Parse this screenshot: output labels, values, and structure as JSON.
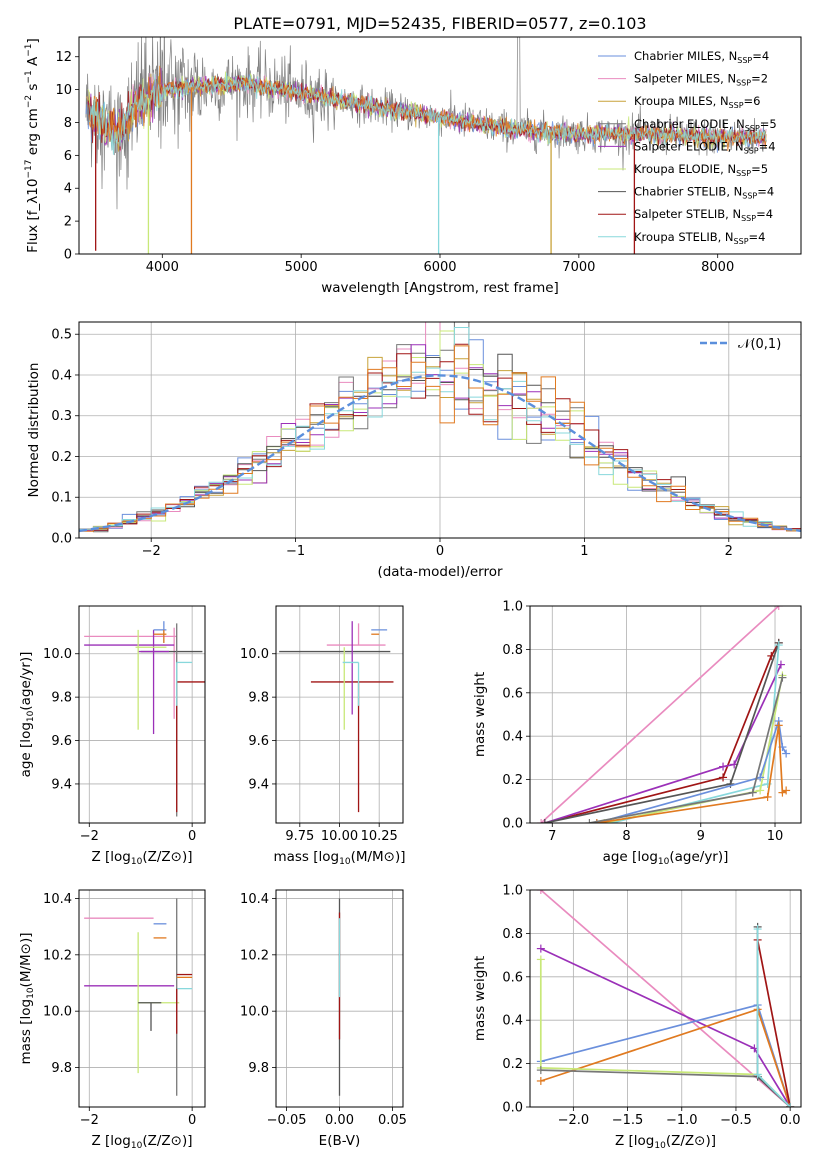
{
  "title": "PLATE=0791, MJD=52435, FIBERID=0577, z=0.103",
  "colors": {
    "chabrier_miles": "#6a8fdc",
    "salpeter_miles": "#e98bbf",
    "kroupa_miles": "#c8a23a",
    "chabrier_elodie": "#777777",
    "salpeter_elodie": "#9b30b8",
    "kroupa_elodie": "#c8e878",
    "chabrier_stelib": "#555555",
    "salpeter_stelib": "#a01515",
    "kroupa_stelib": "#88d8dc",
    "orange": "#e07a20",
    "gauss": "#5b8fdc"
  },
  "legend1": [
    {
      "label": "Chabrier MILES, N",
      "sub": "SSP",
      "tail": "=4",
      "color_key": "chabrier_miles"
    },
    {
      "label": "Salpeter MILES, N",
      "sub": "SSP",
      "tail": "=2",
      "color_key": "salpeter_miles"
    },
    {
      "label": "Kroupa MILES, N",
      "sub": "SSP",
      "tail": "=6",
      "color_key": "kroupa_miles"
    },
    {
      "label": "Chabrier ELODIE, N",
      "sub": "SSP",
      "tail": "=5",
      "color_key": "chabrier_elodie"
    },
    {
      "label": "Salpeter ELODIE, N",
      "sub": "SSP",
      "tail": "=4",
      "color_key": "salpeter_elodie"
    },
    {
      "label": "Kroupa ELODIE, N",
      "sub": "SSP",
      "tail": "=5",
      "color_key": "kroupa_elodie"
    },
    {
      "label": "Chabrier STELIB, N",
      "sub": "SSP",
      "tail": "=4",
      "color_key": "chabrier_stelib"
    },
    {
      "label": "Salpeter STELIB, N",
      "sub": "SSP",
      "tail": "=4",
      "color_key": "salpeter_stelib"
    },
    {
      "label": "Kroupa STELIB, N",
      "sub": "SSP",
      "tail": "=4",
      "color_key": "kroupa_stelib"
    }
  ],
  "chart_data": [
    {
      "id": "spectrum",
      "type": "line",
      "xlabel": "wavelength [Angstrom, rest frame]",
      "ylabel": "Flux [f_λ10^-17 erg cm^-2 s^-1 A^-1]",
      "xlim": [
        3400,
        8600
      ],
      "ylim": [
        0,
        13.2
      ],
      "xticks": [
        4000,
        5000,
        6000,
        7000,
        8000
      ],
      "yticks": [
        0,
        2,
        4,
        6,
        8,
        10,
        12
      ],
      "grid": false,
      "legend_position": "top-right",
      "continuum_points": [
        [
          3450,
          8.8
        ],
        [
          3700,
          7.4
        ],
        [
          3800,
          9.0
        ],
        [
          4000,
          10.0
        ],
        [
          4300,
          10.2
        ],
        [
          4600,
          10.4
        ],
        [
          5000,
          9.8
        ],
        [
          5500,
          9.0
        ],
        [
          6000,
          8.3
        ],
        [
          6500,
          7.6
        ],
        [
          7000,
          7.3
        ],
        [
          7500,
          7.3
        ],
        [
          8000,
          7.1
        ],
        [
          8350,
          7.1
        ]
      ],
      "model_dips": [
        [
          3520,
          0.2
        ],
        [
          3900,
          0.0
        ],
        [
          4210,
          0.0
        ],
        [
          5990,
          0.0
        ],
        [
          6800,
          0.0
        ],
        [
          7400,
          0.0
        ]
      ]
    },
    {
      "id": "residuals",
      "type": "histogram",
      "xlabel": "(data-model)/error",
      "ylabel": "Normed distribution",
      "xlim": [
        -2.5,
        2.5
      ],
      "ylim": [
        0,
        0.53
      ],
      "xticks": [
        -2,
        -1,
        0,
        1,
        2
      ],
      "yticks": [
        0.0,
        0.1,
        0.2,
        0.3,
        0.4,
        0.5
      ],
      "grid": true,
      "legend_position": "top-right",
      "legend": "𝒩(0,1)",
      "gaussian": {
        "mean": 0,
        "sigma": 1
      }
    },
    {
      "id": "age_vs_Z",
      "type": "errorbar",
      "xlabel": "Z [log10(Z/Z⊙)]",
      "ylabel": "age [log10(age/yr)]",
      "xlim": [
        -2.2,
        0.25
      ],
      "ylim": [
        9.22,
        10.22
      ],
      "xticks": [
        -2,
        0
      ],
      "yticks": [
        9.4,
        9.6,
        9.8,
        10.0
      ],
      "grid": true,
      "points": [
        {
          "x": -0.35,
          "y": 10.08,
          "xerr": [
            1.75,
            0.05
          ],
          "yerr": [
            0.38,
            0.04
          ],
          "color_key": "salpeter_miles"
        },
        {
          "x": -0.35,
          "y": 10.04,
          "xerr": [
            1.75,
            0.0
          ],
          "yerr": [
            0.0,
            0.0
          ],
          "color_key": "salpeter_elodie"
        },
        {
          "x": -0.15,
          "y": 10.01,
          "xerr": [
            0.85,
            0.35
          ],
          "yerr": [
            0.0,
            0.0
          ],
          "color_key": "chabrier_stelib"
        },
        {
          "x": -0.75,
          "y": 10.01,
          "xerr": [
            0.3,
            0.3
          ],
          "yerr": [
            0.38,
            0.1
          ],
          "color_key": "salpeter_elodie"
        },
        {
          "x": -0.55,
          "y": 10.11,
          "xerr": [
            0.2,
            0.05
          ],
          "yerr": [
            0.06,
            0.04
          ],
          "color_key": "chabrier_miles"
        },
        {
          "x": -0.55,
          "y": 10.09,
          "xerr": [
            0.2,
            0.05
          ],
          "yerr": [
            0.04,
            0.02
          ],
          "color_key": "orange"
        },
        {
          "x": -1.05,
          "y": 10.03,
          "xerr": [
            0.05,
            0.55
          ],
          "yerr": [
            0.38,
            0.08
          ],
          "color_key": "kroupa_elodie"
        },
        {
          "x": -0.3,
          "y": 10.0,
          "xerr": [
            0.0,
            0.0
          ],
          "yerr": [
            0.75,
            0.14
          ],
          "color_key": "chabrier_elodie"
        },
        {
          "x": -0.3,
          "y": 9.87,
          "xerr": [
            0.0,
            0.55
          ],
          "yerr": [
            0.6,
            0.0
          ],
          "color_key": "salpeter_stelib"
        },
        {
          "x": -0.3,
          "y": 9.96,
          "xerr": [
            0.0,
            0.3
          ],
          "yerr": [
            0.2,
            0.0
          ],
          "color_key": "kroupa_stelib"
        }
      ]
    },
    {
      "id": "age_vs_mass",
      "type": "errorbar",
      "xlabel": "mass [log10(M/M⊙)]",
      "xlim": [
        9.6,
        10.4
      ],
      "ylim": [
        9.22,
        10.22
      ],
      "xticks": [
        9.75,
        10.0,
        10.25
      ],
      "xticklabels": [
        "9.75",
        "10.00",
        "10.25"
      ],
      "yticks": [
        9.4,
        9.6,
        9.8,
        10.0
      ],
      "grid": true,
      "points": [
        {
          "x": 10.12,
          "y": 10.01,
          "xerr": [
            0.5,
            0.2
          ],
          "yerr": [
            0.0,
            0.0
          ],
          "color_key": "chabrier_stelib"
        },
        {
          "x": 10.12,
          "y": 9.87,
          "xerr": [
            0.3,
            0.22
          ],
          "yerr": [
            0.6,
            0.0
          ],
          "color_key": "salpeter_stelib"
        },
        {
          "x": 10.12,
          "y": 10.04,
          "xerr": [
            0.2,
            0.17
          ],
          "yerr": [
            0.0,
            0.1
          ],
          "color_key": "salpeter_miles"
        },
        {
          "x": 10.25,
          "y": 10.11,
          "xerr": [
            0.05,
            0.05
          ],
          "yerr": [
            0.0,
            0.0
          ],
          "color_key": "chabrier_miles"
        },
        {
          "x": 10.25,
          "y": 10.09,
          "xerr": [
            0.05,
            0.0
          ],
          "yerr": [
            0.0,
            0.0
          ],
          "color_key": "orange"
        },
        {
          "x": 10.03,
          "y": 10.03,
          "xerr": [
            0.0,
            0.0
          ],
          "yerr": [
            0.38,
            0.0
          ],
          "color_key": "kroupa_elodie"
        },
        {
          "x": 10.08,
          "y": 10.1,
          "xerr": [
            0.0,
            0.0
          ],
          "yerr": [
            0.38,
            0.05
          ],
          "color_key": "salpeter_elodie"
        },
        {
          "x": 10.12,
          "y": 9.96,
          "xerr": [
            0.1,
            0.0
          ],
          "yerr": [
            0.2,
            0.0
          ],
          "color_key": "kroupa_stelib"
        }
      ]
    },
    {
      "id": "weights_vs_age",
      "type": "line",
      "xlabel": "age [log10(age/yr)]",
      "ylabel": "mass weight",
      "xlim": [
        6.7,
        10.35
      ],
      "ylim": [
        0,
        1.0
      ],
      "xticks": [
        7,
        8,
        9,
        10
      ],
      "yticks": [
        0.0,
        0.2,
        0.4,
        0.6,
        0.8,
        1.0
      ],
      "grid": true,
      "series": [
        {
          "color_key": "salpeter_miles",
          "x": [
            6.85,
            10.05
          ],
          "y": [
            0.0,
            1.0
          ]
        },
        {
          "color_key": "salpeter_stelib",
          "x": [
            6.9,
            9.3,
            9.95,
            10.05
          ],
          "y": [
            0.0,
            0.21,
            0.77,
            0.83
          ]
        },
        {
          "color_key": "salpeter_elodie",
          "x": [
            6.9,
            9.3,
            9.45,
            10.08
          ],
          "y": [
            0.0,
            0.26,
            0.27,
            0.73
          ]
        },
        {
          "color_key": "chabrier_stelib",
          "x": [
            6.9,
            9.4,
            10.05
          ],
          "y": [
            0.0,
            0.18,
            0.83
          ]
        },
        {
          "color_key": "kroupa_stelib",
          "x": [
            7.8,
            9.9,
            10.05
          ],
          "y": [
            0.0,
            0.18,
            0.82
          ]
        },
        {
          "color_key": "kroupa_elodie",
          "x": [
            7.7,
            9.8,
            10.1
          ],
          "y": [
            0.0,
            0.15,
            0.68
          ]
        },
        {
          "color_key": "chabrier_miles",
          "x": [
            7.6,
            9.8,
            10.05,
            10.1,
            10.15
          ],
          "y": [
            0.0,
            0.21,
            0.47,
            0.35,
            0.32
          ]
        },
        {
          "color_key": "orange",
          "x": [
            7.6,
            9.9,
            10.05,
            10.1,
            10.15
          ],
          "y": [
            0.0,
            0.12,
            0.45,
            0.14,
            0.15
          ]
        },
        {
          "color_key": "chabrier_elodie",
          "x": [
            7.5,
            9.7,
            10.1
          ],
          "y": [
            0.0,
            0.14,
            0.67
          ]
        }
      ]
    },
    {
      "id": "mass_vs_Z",
      "type": "errorbar",
      "xlabel": "Z [log10(Z/Z⊙)]",
      "ylabel": "mass [log10(M/M⊙)]",
      "xlim": [
        -2.2,
        0.25
      ],
      "ylim": [
        9.66,
        10.43
      ],
      "xticks": [
        -2,
        0
      ],
      "yticks": [
        9.8,
        10.0,
        10.2,
        10.4
      ],
      "grid": true,
      "points": [
        {
          "x": -0.75,
          "y": 10.33,
          "xerr": [
            1.35,
            0.0
          ],
          "yerr": [
            0.0,
            0.0
          ],
          "color_key": "salpeter_miles"
        },
        {
          "x": -0.35,
          "y": 10.09,
          "xerr": [
            1.75,
            0.0
          ],
          "yerr": [
            0.0,
            0.0
          ],
          "color_key": "salpeter_elodie"
        },
        {
          "x": -1.05,
          "y": 10.03,
          "xerr": [
            0.0,
            0.8
          ],
          "yerr": [
            0.25,
            0.25
          ],
          "color_key": "kroupa_elodie"
        },
        {
          "x": -0.8,
          "y": 10.03,
          "xerr": [
            0.25,
            0.2
          ],
          "yerr": [
            0.1,
            0.0
          ],
          "color_key": "chabrier_stelib"
        },
        {
          "x": -0.55,
          "y": 10.31,
          "xerr": [
            0.2,
            0.05
          ],
          "yerr": [
            0.0,
            0.0
          ],
          "color_key": "chabrier_miles"
        },
        {
          "x": -0.55,
          "y": 10.26,
          "xerr": [
            0.2,
            0.05
          ],
          "yerr": [
            0.0,
            0.0
          ],
          "color_key": "orange"
        },
        {
          "x": -0.3,
          "y": 10.0,
          "xerr": [
            0.0,
            0.0
          ],
          "yerr": [
            0.3,
            0.4
          ],
          "color_key": "chabrier_elodie"
        },
        {
          "x": -0.3,
          "y": 10.13,
          "xerr": [
            0.0,
            0.3
          ],
          "yerr": [
            0.0,
            0.0
          ],
          "color_key": "salpeter_stelib"
        },
        {
          "x": -0.3,
          "y": 10.12,
          "xerr": [
            0.0,
            0.3
          ],
          "yerr": [
            0.0,
            0.0
          ],
          "color_key": "orange"
        },
        {
          "x": -0.3,
          "y": 10.08,
          "xerr": [
            0.0,
            0.3
          ],
          "yerr": [
            0.0,
            0.0
          ],
          "color_key": "kroupa_stelib"
        },
        {
          "x": -0.3,
          "y": 10.08,
          "xerr": [
            0.0,
            0.0
          ],
          "yerr": [
            0.16,
            0.0
          ],
          "color_key": "salpeter_stelib"
        }
      ]
    },
    {
      "id": "mass_vs_ebv",
      "type": "errorbar",
      "xlabel": "E(B-V)",
      "xlim": [
        -0.06,
        0.06
      ],
      "ylim": [
        9.66,
        10.43
      ],
      "xticks": [
        -0.05,
        0.0,
        0.05
      ],
      "xticklabels": [
        "−0.05",
        "0.00",
        "0.05"
      ],
      "yticks": [
        9.8,
        10.0,
        10.2,
        10.4
      ],
      "grid": true,
      "points": [
        {
          "x": 0.0,
          "y": 10.05,
          "xerr": [
            0,
            0
          ],
          "yerr": [
            0.35,
            0.35
          ],
          "color_key": "chabrier_stelib"
        },
        {
          "x": 0.0,
          "y": 10.05,
          "xerr": [
            0,
            0
          ],
          "yerr": [
            0.15,
            0.3
          ],
          "color_key": "salpeter_stelib"
        },
        {
          "x": 0.0,
          "y": 10.05,
          "xerr": [
            0,
            0
          ],
          "yerr": [
            0.0,
            0.28
          ],
          "color_key": "kroupa_stelib"
        }
      ]
    },
    {
      "id": "weights_vs_Z",
      "type": "line",
      "xlabel": "Z [log10(Z/Z⊙)]",
      "ylabel": "mass weight",
      "xlim": [
        -2.4,
        0.1
      ],
      "ylim": [
        0,
        1.0
      ],
      "xticks": [
        -2.0,
        -1.5,
        -1.0,
        -0.5,
        0.0
      ],
      "xticklabels": [
        "−2.0",
        "−1.5",
        "−1.0",
        "−0.5",
        "0.0"
      ],
      "yticks": [
        0.0,
        0.2,
        0.4,
        0.6,
        0.8,
        1.0
      ],
      "grid": true,
      "series": [
        {
          "color_key": "salpeter_miles",
          "x": [
            -2.3,
            0.0
          ],
          "y": [
            1.0,
            0.0
          ]
        },
        {
          "color_key": "salpeter_elodie",
          "x": [
            -2.3,
            -0.33,
            0.0
          ],
          "y": [
            0.73,
            0.27,
            0.0
          ]
        },
        {
          "color_key": "chabrier_miles",
          "x": [
            -2.3,
            -0.3,
            0.0
          ],
          "y": [
            0.21,
            0.47,
            0.0
          ]
        },
        {
          "color_key": "orange",
          "x": [
            -2.3,
            -0.3,
            0.0
          ],
          "y": [
            0.12,
            0.45,
            0.0
          ]
        },
        {
          "color_key": "kroupa_elodie",
          "x": [
            -2.3,
            -2.3,
            -0.3,
            0.0
          ],
          "y": [
            0.68,
            0.18,
            0.15,
            0.0
          ]
        },
        {
          "color_key": "chabrier_elodie",
          "x": [
            -2.3,
            -0.3,
            0.0
          ],
          "y": [
            0.17,
            0.14,
            0.0
          ]
        },
        {
          "color_key": "chabrier_stelib",
          "x": [
            -0.3,
            -0.3,
            0.0
          ],
          "y": [
            0.83,
            0.14,
            0.0
          ]
        },
        {
          "color_key": "salpeter_stelib",
          "x": [
            -0.3,
            0.0
          ],
          "y": [
            0.77,
            0.0
          ]
        },
        {
          "color_key": "kroupa_stelib",
          "x": [
            -0.3,
            -0.3,
            0.0
          ],
          "y": [
            0.82,
            0.15,
            0.0
          ]
        }
      ]
    }
  ]
}
